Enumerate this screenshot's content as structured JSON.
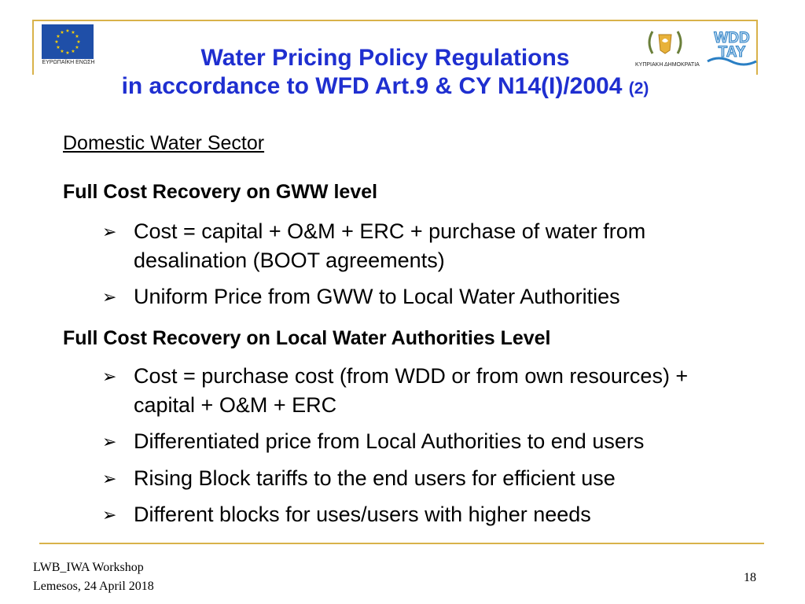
{
  "header": {
    "eu_caption": "ΕΥΡΩΠΑΪΚΗ ΕΝΩΣΗ",
    "cy_caption": "ΚΥΠΡΙΑΚΗ ΔΗΜΟΚΡΑΤΙΑ",
    "wdd_logo_text": "WDD TAY",
    "brand_colors": {
      "eu_blue": "#1f4fa8",
      "eu_star": "#ffd400",
      "frame_gold": "#d9b24a",
      "title_blue": "#1f2fd0"
    }
  },
  "title": {
    "line1": "Water Pricing Policy Regulations",
    "line2": "in accordance to WFD Art.9 & CY N14(I)/2004",
    "part": "(2)"
  },
  "content": {
    "section_heading": "Domestic Water Sector",
    "blocks": [
      {
        "heading": "Full Cost Recovery on GWW level",
        "bullets": [
          "Cost = capital + O&M + ERC + purchase of water from desalination (BOOT agreements)",
          "Uniform Price from GWW to Local Water Authorities"
        ]
      },
      {
        "heading": "Full Cost Recovery on Local Water Authorities Level",
        "bullets": [
          "Cost = purchase cost (from WDD or from own resources) + capital + O&M + ERC",
          "Differentiated price from Local Authorities to end users",
          "Rising Block tariffs to the end users for efficient use",
          "Different blocks for uses/users with higher needs"
        ]
      }
    ],
    "bullet_symbol": "➢"
  },
  "footer": {
    "line1": "LWB_IWA Workshop",
    "line2": "Lemesos, 24 April 2018",
    "page_number": "18"
  }
}
